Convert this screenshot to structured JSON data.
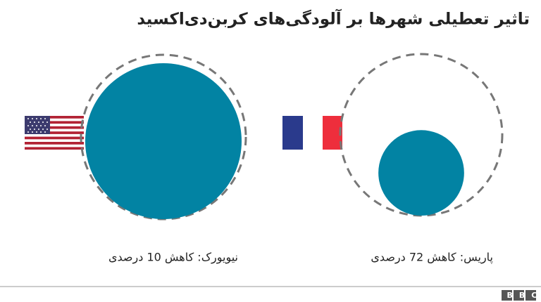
{
  "chart_data": {
    "type": "area-circle",
    "title": "تاثیر تعطیلی شهرها بر آلودگی‌های کربن‌دی‌اکسید",
    "values": [
      10,
      72
    ],
    "value_labels": [
      "نیویورک: کاهش 10 درصدی",
      "پاریس: کاهش 72 درصدی"
    ],
    "color": "#0283a3"
  },
  "footer": {
    "logo": "BBC"
  }
}
